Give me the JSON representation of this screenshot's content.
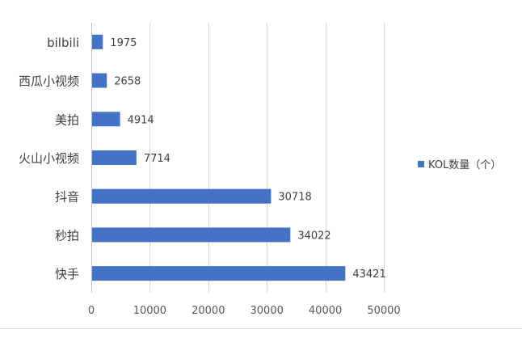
{
  "chart_data": {
    "type": "bar",
    "orientation": "horizontal",
    "categories": [
      "bilbili",
      "西瓜小视频",
      "美拍",
      "火山小视频",
      "抖音",
      "秒拍",
      "快手"
    ],
    "series": [
      {
        "name": "KOL数量（个）",
        "values": [
          1975,
          2658,
          4914,
          7714,
          30718,
          34022,
          43421
        ],
        "color": "#4472C4"
      }
    ],
    "data_labels": [
      "1975",
      "2658",
      "4914",
      "7714",
      "30718",
      "34022",
      "43421"
    ],
    "x_ticks": [
      0,
      10000,
      20000,
      30000,
      40000,
      50000
    ],
    "x_tick_labels": [
      "0",
      "10000",
      "20000",
      "30000",
      "40000",
      "50000"
    ],
    "xlim": [
      0,
      50000
    ],
    "grid": "vertical",
    "legend": {
      "position": "right",
      "label": "KOL数量（个）"
    },
    "title": "",
    "xlabel": "",
    "ylabel": ""
  }
}
